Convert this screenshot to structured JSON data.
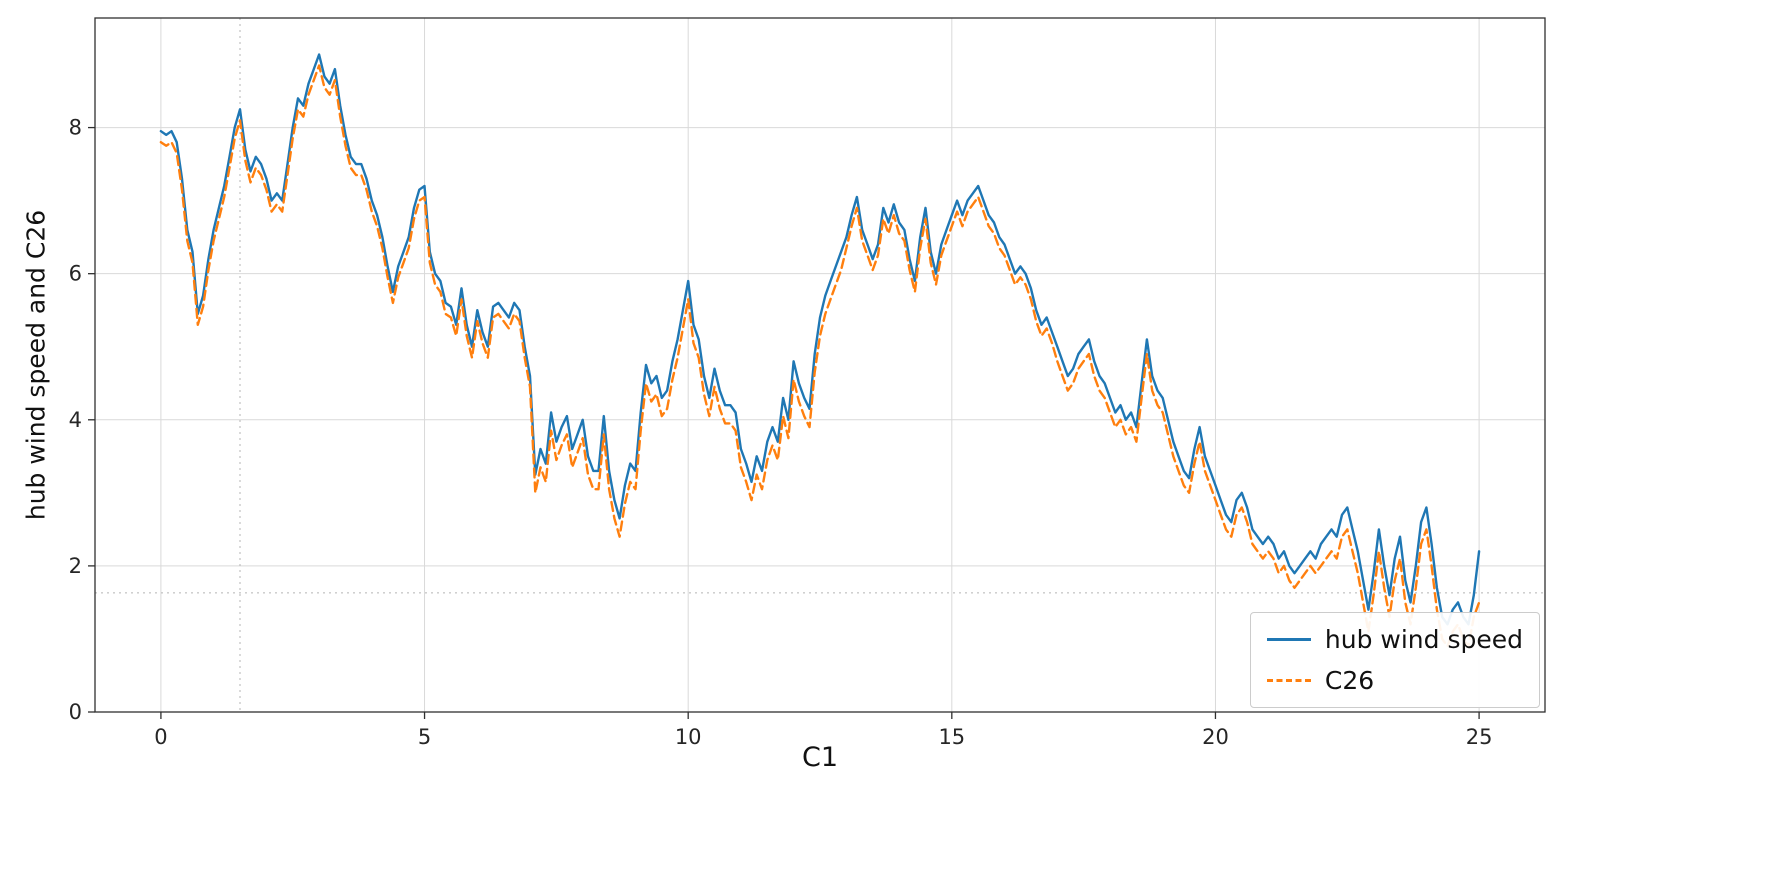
{
  "figure": {
    "background": "#ffffff"
  },
  "chart_data": {
    "type": "line",
    "title": "",
    "xlabel": "C1",
    "ylabel": "hub wind speed and C26",
    "xlim": [
      -1.25,
      26.25
    ],
    "ylim": [
      0,
      9.5
    ],
    "x_ticks": [
      0,
      5,
      10,
      15,
      20,
      25
    ],
    "y_ticks": [
      0,
      2,
      4,
      6,
      8
    ],
    "grid": true,
    "grid_color": "#d9d9d9",
    "spine_color": "#2f2f2f",
    "legend_position": "lower right",
    "reference_lines": {
      "vline_x": 1.5,
      "hline_y": 1.63,
      "style": "dotted",
      "color": "#b5b5b5"
    },
    "x": {
      "start": 0,
      "step": 0.1,
      "count": 251
    },
    "series": [
      {
        "name": "hub wind speed",
        "color": "#1f77b4",
        "style": "solid",
        "values": [
          7.95,
          7.9,
          7.95,
          7.8,
          7.3,
          6.6,
          6.3,
          5.45,
          5.7,
          6.2,
          6.6,
          6.9,
          7.2,
          7.6,
          8.0,
          8.25,
          7.7,
          7.4,
          7.6,
          7.5,
          7.3,
          7.0,
          7.1,
          7.0,
          7.5,
          8.0,
          8.4,
          8.3,
          8.6,
          8.8,
          9.0,
          8.7,
          8.6,
          8.8,
          8.3,
          7.9,
          7.6,
          7.5,
          7.5,
          7.3,
          7.0,
          6.8,
          6.5,
          6.1,
          5.75,
          6.1,
          6.3,
          6.5,
          6.9,
          7.15,
          7.2,
          6.3,
          6.0,
          5.9,
          5.6,
          5.55,
          5.3,
          5.8,
          5.3,
          5.0,
          5.5,
          5.2,
          5.0,
          5.55,
          5.6,
          5.5,
          5.4,
          5.6,
          5.5,
          5.0,
          4.6,
          3.25,
          3.6,
          3.4,
          4.1,
          3.7,
          3.9,
          4.05,
          3.6,
          3.8,
          4.0,
          3.5,
          3.3,
          3.3,
          4.05,
          3.3,
          2.9,
          2.65,
          3.1,
          3.4,
          3.3,
          4.1,
          4.75,
          4.5,
          4.6,
          4.3,
          4.4,
          4.8,
          5.1,
          5.5,
          5.9,
          5.3,
          5.1,
          4.6,
          4.3,
          4.7,
          4.4,
          4.2,
          4.2,
          4.1,
          3.6,
          3.4,
          3.15,
          3.5,
          3.3,
          3.7,
          3.9,
          3.7,
          4.3,
          4.0,
          4.8,
          4.5,
          4.3,
          4.15,
          4.9,
          5.4,
          5.7,
          5.9,
          6.1,
          6.3,
          6.5,
          6.8,
          7.05,
          6.6,
          6.4,
          6.2,
          6.4,
          6.9,
          6.7,
          6.95,
          6.7,
          6.6,
          6.2,
          5.9,
          6.5,
          6.9,
          6.3,
          6.0,
          6.4,
          6.6,
          6.8,
          7.0,
          6.8,
          7.0,
          7.1,
          7.2,
          7.0,
          6.8,
          6.7,
          6.5,
          6.4,
          6.2,
          6.0,
          6.1,
          6.0,
          5.8,
          5.5,
          5.3,
          5.4,
          5.2,
          5.0,
          4.8,
          4.6,
          4.7,
          4.9,
          5.0,
          5.1,
          4.8,
          4.6,
          4.5,
          4.3,
          4.1,
          4.2,
          4.0,
          4.1,
          3.9,
          4.5,
          5.1,
          4.6,
          4.4,
          4.3,
          4.0,
          3.7,
          3.5,
          3.3,
          3.2,
          3.6,
          3.9,
          3.5,
          3.3,
          3.1,
          2.9,
          2.7,
          2.6,
          2.9,
          3.0,
          2.8,
          2.5,
          2.4,
          2.3,
          2.4,
          2.3,
          2.1,
          2.2,
          2.0,
          1.9,
          2.0,
          2.1,
          2.2,
          2.1,
          2.3,
          2.4,
          2.5,
          2.4,
          2.7,
          2.8,
          2.5,
          2.2,
          1.8,
          1.4,
          1.9,
          2.5,
          2.0,
          1.6,
          2.1,
          2.4,
          1.8,
          1.5,
          2.0,
          2.6,
          2.8,
          2.3,
          1.7,
          1.3,
          1.2,
          1.4,
          1.5,
          1.3,
          1.2,
          1.6,
          2.2
        ]
      },
      {
        "name": "C26",
        "color": "#ff7f0e",
        "style": "dashed",
        "values": [
          7.8,
          7.75,
          7.8,
          7.65,
          7.15,
          6.45,
          6.15,
          5.3,
          5.55,
          6.05,
          6.45,
          6.75,
          7.05,
          7.45,
          7.85,
          8.1,
          7.55,
          7.25,
          7.45,
          7.35,
          7.15,
          6.85,
          6.95,
          6.85,
          7.35,
          7.85,
          8.25,
          8.15,
          8.45,
          8.65,
          8.85,
          8.55,
          8.45,
          8.65,
          8.15,
          7.75,
          7.45,
          7.35,
          7.35,
          7.15,
          6.85,
          6.65,
          6.35,
          5.95,
          5.6,
          5.95,
          6.15,
          6.35,
          6.75,
          7.0,
          7.05,
          6.15,
          5.85,
          5.75,
          5.45,
          5.4,
          5.15,
          5.65,
          5.15,
          4.85,
          5.35,
          5.05,
          4.85,
          5.4,
          5.45,
          5.35,
          5.25,
          5.45,
          5.35,
          4.85,
          4.45,
          3.0,
          3.35,
          3.15,
          3.85,
          3.45,
          3.65,
          3.8,
          3.35,
          3.55,
          3.75,
          3.25,
          3.05,
          3.05,
          3.8,
          3.05,
          2.65,
          2.4,
          2.85,
          3.15,
          3.05,
          3.85,
          4.5,
          4.25,
          4.35,
          4.05,
          4.15,
          4.55,
          4.85,
          5.25,
          5.65,
          5.05,
          4.85,
          4.35,
          4.05,
          4.45,
          4.15,
          3.95,
          3.95,
          3.85,
          3.35,
          3.15,
          2.9,
          3.25,
          3.05,
          3.45,
          3.65,
          3.45,
          4.05,
          3.75,
          4.55,
          4.25,
          4.05,
          3.9,
          4.65,
          5.15,
          5.45,
          5.65,
          5.85,
          6.05,
          6.35,
          6.65,
          6.9,
          6.45,
          6.25,
          6.05,
          6.25,
          6.75,
          6.55,
          6.8,
          6.55,
          6.45,
          6.05,
          5.75,
          6.35,
          6.75,
          6.15,
          5.85,
          6.25,
          6.45,
          6.65,
          6.85,
          6.65,
          6.85,
          6.95,
          7.05,
          6.85,
          6.65,
          6.55,
          6.35,
          6.25,
          6.05,
          5.85,
          5.95,
          5.85,
          5.65,
          5.35,
          5.15,
          5.25,
          5.05,
          4.8,
          4.6,
          4.4,
          4.5,
          4.7,
          4.8,
          4.9,
          4.6,
          4.4,
          4.3,
          4.1,
          3.9,
          4.0,
          3.8,
          3.9,
          3.7,
          4.3,
          4.9,
          4.4,
          4.2,
          4.1,
          3.8,
          3.5,
          3.3,
          3.1,
          3.0,
          3.4,
          3.7,
          3.3,
          3.1,
          2.9,
          2.7,
          2.5,
          2.4,
          2.7,
          2.8,
          2.6,
          2.3,
          2.2,
          2.1,
          2.2,
          2.1,
          1.9,
          2.0,
          1.8,
          1.7,
          1.8,
          1.9,
          2.0,
          1.9,
          2.0,
          2.1,
          2.2,
          2.1,
          2.4,
          2.5,
          2.2,
          1.9,
          1.5,
          1.1,
          1.6,
          2.2,
          1.7,
          1.3,
          1.8,
          2.1,
          1.5,
          1.2,
          1.7,
          2.3,
          2.5,
          2.0,
          1.4,
          1.0,
          0.9,
          1.1,
          1.2,
          1.0,
          0.9,
          1.3,
          1.5
        ]
      }
    ]
  }
}
